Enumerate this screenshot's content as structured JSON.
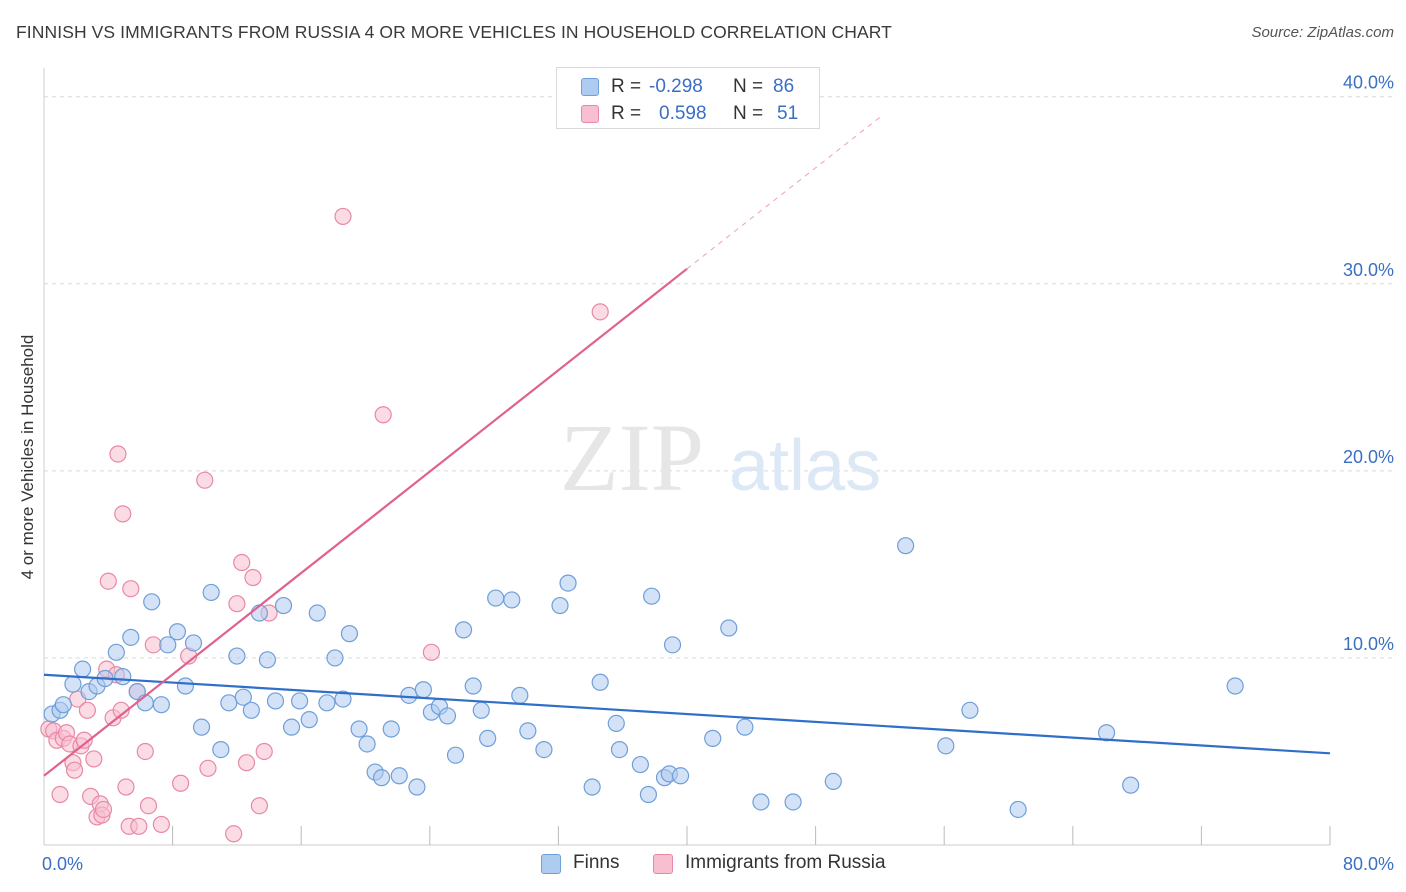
{
  "header": {
    "title": "FINNISH VS IMMIGRANTS FROM RUSSIA 4 OR MORE VEHICLES IN HOUSEHOLD CORRELATION CHART",
    "source": "Source: ZipAtlas.com"
  },
  "watermark": {
    "zip": "ZIP",
    "atlas": "atlas"
  },
  "legend_top": {
    "rows": [
      {
        "r_label": "R =",
        "r_value": "-0.298",
        "n_label": "N =",
        "n_value": "86"
      },
      {
        "r_label": "R =",
        "r_value": "0.598",
        "n_label": "N =",
        "n_value": "51"
      }
    ]
  },
  "legend_bottom": {
    "finns": "Finns",
    "russia": "Immigrants from Russia"
  },
  "colors": {
    "finns_fill": "#aecbf0",
    "finns_stroke": "#6f9fd8",
    "finns_line": "#2f6fc8",
    "russia_fill": "#f7bfd0",
    "russia_stroke": "#e888a6",
    "russia_line": "#e0628e",
    "tick_label": "#3a6fc4",
    "grid": "#d9d9d9"
  },
  "chart_data": {
    "type": "scatter",
    "title": "FINNISH VS IMMIGRANTS FROM RUSSIA 4 OR MORE VEHICLES IN HOUSEHOLD CORRELATION CHART",
    "xlabel": "",
    "ylabel": "4 or more Vehicles in Household",
    "xlim": [
      0,
      80
    ],
    "ylim": [
      0,
      41
    ],
    "x_tick_labels": [
      {
        "value": 0,
        "label": "0.0%"
      },
      {
        "value": 80,
        "label": "80.0%"
      }
    ],
    "y_tick_labels": [
      {
        "value": 10,
        "label": "10.0%"
      },
      {
        "value": 20,
        "label": "20.0%"
      },
      {
        "value": 30,
        "label": "30.0%"
      },
      {
        "value": 40,
        "label": "40.0%"
      }
    ],
    "x_minor_ticks": [
      8,
      16,
      24,
      32,
      40,
      48,
      56,
      64,
      72,
      80
    ],
    "grid": true,
    "legend_position": "bottom",
    "series": [
      {
        "name": "Finns",
        "r": -0.298,
        "n": 86,
        "trend": {
          "x": [
            0,
            80
          ],
          "y": [
            9.1,
            4.9
          ]
        },
        "points": [
          [
            0.5,
            7.0
          ],
          [
            1.0,
            7.2
          ],
          [
            1.2,
            7.5
          ],
          [
            1.8,
            8.6
          ],
          [
            2.4,
            9.4
          ],
          [
            2.8,
            8.2
          ],
          [
            3.3,
            8.5
          ],
          [
            3.8,
            8.9
          ],
          [
            4.5,
            10.3
          ],
          [
            4.9,
            9.0
          ],
          [
            5.4,
            11.1
          ],
          [
            5.8,
            8.2
          ],
          [
            6.3,
            7.6
          ],
          [
            6.7,
            13.0
          ],
          [
            7.3,
            7.5
          ],
          [
            7.7,
            10.7
          ],
          [
            8.3,
            11.4
          ],
          [
            8.8,
            8.5
          ],
          [
            9.3,
            10.8
          ],
          [
            9.8,
            6.3
          ],
          [
            10.4,
            13.5
          ],
          [
            11.0,
            5.1
          ],
          [
            11.5,
            7.6
          ],
          [
            12.0,
            10.1
          ],
          [
            12.4,
            7.9
          ],
          [
            12.9,
            7.2
          ],
          [
            13.4,
            12.4
          ],
          [
            13.9,
            9.9
          ],
          [
            14.4,
            7.7
          ],
          [
            14.9,
            12.8
          ],
          [
            15.4,
            6.3
          ],
          [
            15.9,
            7.7
          ],
          [
            16.5,
            6.7
          ],
          [
            17.0,
            12.4
          ],
          [
            17.6,
            7.6
          ],
          [
            18.1,
            10.0
          ],
          [
            18.6,
            7.8
          ],
          [
            19.0,
            11.3
          ],
          [
            19.6,
            6.2
          ],
          [
            20.1,
            5.4
          ],
          [
            20.6,
            3.9
          ],
          [
            21.0,
            3.6
          ],
          [
            21.6,
            6.2
          ],
          [
            22.1,
            3.7
          ],
          [
            22.7,
            8.0
          ],
          [
            23.2,
            3.1
          ],
          [
            23.6,
            8.3
          ],
          [
            24.1,
            7.1
          ],
          [
            24.6,
            7.4
          ],
          [
            25.1,
            6.9
          ],
          [
            25.6,
            4.8
          ],
          [
            26.1,
            11.5
          ],
          [
            26.7,
            8.5
          ],
          [
            27.2,
            7.2
          ],
          [
            27.6,
            5.7
          ],
          [
            28.1,
            13.2
          ],
          [
            29.1,
            13.1
          ],
          [
            29.6,
            8.0
          ],
          [
            30.1,
            6.1
          ],
          [
            31.1,
            5.1
          ],
          [
            32.1,
            12.8
          ],
          [
            32.6,
            14.0
          ],
          [
            34.1,
            3.1
          ],
          [
            34.6,
            8.7
          ],
          [
            35.6,
            6.5
          ],
          [
            35.8,
            5.1
          ],
          [
            37.1,
            4.3
          ],
          [
            37.6,
            2.7
          ],
          [
            37.8,
            13.3
          ],
          [
            38.6,
            3.6
          ],
          [
            38.9,
            3.8
          ],
          [
            39.1,
            10.7
          ],
          [
            39.6,
            3.7
          ],
          [
            41.6,
            5.7
          ],
          [
            42.6,
            11.6
          ],
          [
            43.6,
            6.3
          ],
          [
            44.6,
            2.3
          ],
          [
            46.6,
            2.3
          ],
          [
            49.1,
            3.4
          ],
          [
            53.6,
            16.0
          ],
          [
            56.1,
            5.3
          ],
          [
            57.6,
            7.2
          ],
          [
            60.6,
            1.9
          ],
          [
            66.1,
            6.0
          ],
          [
            67.6,
            3.2
          ],
          [
            74.1,
            8.5
          ]
        ]
      },
      {
        "name": "Immigrants from Russia",
        "r": 0.598,
        "n": 51,
        "trend": {
          "x": [
            0,
            40
          ],
          "y": [
            3.7,
            30.8
          ]
        },
        "trend_dashed": {
          "x": [
            40,
            52
          ],
          "y": [
            30.8,
            38.9
          ]
        },
        "points": [
          [
            0.3,
            6.2
          ],
          [
            0.6,
            6.1
          ],
          [
            0.8,
            5.6
          ],
          [
            1.0,
            2.7
          ],
          [
            1.2,
            5.7
          ],
          [
            1.4,
            6.0
          ],
          [
            1.6,
            5.4
          ],
          [
            1.8,
            4.4
          ],
          [
            1.9,
            4.0
          ],
          [
            2.1,
            7.8
          ],
          [
            2.3,
            5.3
          ],
          [
            2.5,
            5.6
          ],
          [
            2.7,
            7.2
          ],
          [
            2.9,
            2.6
          ],
          [
            3.1,
            4.6
          ],
          [
            3.3,
            1.5
          ],
          [
            3.5,
            2.2
          ],
          [
            3.6,
            1.6
          ],
          [
            3.7,
            1.9
          ],
          [
            3.9,
            9.4
          ],
          [
            4.0,
            14.1
          ],
          [
            4.3,
            6.8
          ],
          [
            4.5,
            9.1
          ],
          [
            4.6,
            20.9
          ],
          [
            4.8,
            7.2
          ],
          [
            4.9,
            17.7
          ],
          [
            5.1,
            3.1
          ],
          [
            5.3,
            1.0
          ],
          [
            5.4,
            13.7
          ],
          [
            5.8,
            8.2
          ],
          [
            5.9,
            1.0
          ],
          [
            6.3,
            5.0
          ],
          [
            6.5,
            2.1
          ],
          [
            6.8,
            10.7
          ],
          [
            7.3,
            1.1
          ],
          [
            8.5,
            3.3
          ],
          [
            9.0,
            10.1
          ],
          [
            10.0,
            19.5
          ],
          [
            10.2,
            4.1
          ],
          [
            11.8,
            0.6
          ],
          [
            12.0,
            12.9
          ],
          [
            12.3,
            15.1
          ],
          [
            12.6,
            4.4
          ],
          [
            13.0,
            14.3
          ],
          [
            13.4,
            2.1
          ],
          [
            13.7,
            5.0
          ],
          [
            14.0,
            12.4
          ],
          [
            18.6,
            33.6
          ],
          [
            21.1,
            23.0
          ],
          [
            24.1,
            10.3
          ],
          [
            34.6,
            28.5
          ]
        ]
      }
    ]
  }
}
